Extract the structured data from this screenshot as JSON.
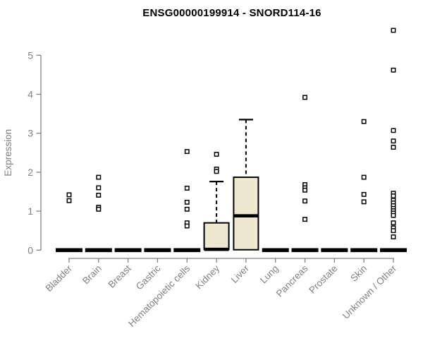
{
  "window": {
    "title": "ENSG00000199914 - SNORD114-16"
  },
  "chart_data": {
    "type": "boxplot",
    "title": "ENSG00000199914 - SNORD114-16",
    "xlabel": "",
    "ylabel": "Expression",
    "ylim": [
      0,
      5.8
    ],
    "yticks": [
      0,
      1,
      2,
      3,
      4,
      5
    ],
    "grid": false,
    "legend": false,
    "categories": [
      "Bladder",
      "Brain",
      "Breast",
      "Gastric",
      "Hematopoietic cells",
      "Kidney",
      "Liver",
      "Lung",
      "Pancreas",
      "Prostate",
      "Skin",
      "Unknown / Other"
    ],
    "boxes": [
      {
        "category": "Bladder",
        "whisker_low": 0,
        "q1": 0,
        "median": 0,
        "q3": 0,
        "whisker_high": 0,
        "outliers": [
          1.42,
          1.27
        ]
      },
      {
        "category": "Brain",
        "whisker_low": 0,
        "q1": 0,
        "median": 0,
        "q3": 0,
        "whisker_high": 0,
        "outliers": [
          1.87,
          1.6,
          1.41,
          1.1,
          1.05
        ]
      },
      {
        "category": "Breast",
        "whisker_low": 0,
        "q1": 0,
        "median": 0,
        "q3": 0,
        "whisker_high": 0,
        "outliers": []
      },
      {
        "category": "Gastric",
        "whisker_low": 0,
        "q1": 0,
        "median": 0,
        "q3": 0,
        "whisker_high": 0,
        "outliers": []
      },
      {
        "category": "Hematopoietic cells",
        "whisker_low": 0,
        "q1": 0,
        "median": 0,
        "q3": 0,
        "whisker_high": 0,
        "outliers": [
          2.53,
          1.59,
          1.23,
          1.05,
          0.7,
          0.62
        ]
      },
      {
        "category": "Kidney",
        "whisker_low": 0,
        "q1": 0.02,
        "median": 0.02,
        "q3": 0.7,
        "whisker_high": 1.76,
        "outliers": [
          2.46,
          2.08,
          2.02
        ]
      },
      {
        "category": "Liver",
        "whisker_low": 0,
        "q1": 0.01,
        "median": 0.88,
        "q3": 1.87,
        "whisker_high": 3.35,
        "outliers": []
      },
      {
        "category": "Lung",
        "whisker_low": 0,
        "q1": 0,
        "median": 0,
        "q3": 0,
        "whisker_high": 0,
        "outliers": []
      },
      {
        "category": "Pancreas",
        "whisker_low": 0,
        "q1": 0,
        "median": 0,
        "q3": 0,
        "whisker_high": 0,
        "outliers": [
          3.92,
          1.68,
          1.6,
          1.54,
          1.26,
          0.79
        ]
      },
      {
        "category": "Prostate",
        "whisker_low": 0,
        "q1": 0,
        "median": 0,
        "q3": 0,
        "whisker_high": 0,
        "outliers": []
      },
      {
        "category": "Skin",
        "whisker_low": 0,
        "q1": 0,
        "median": 0,
        "q3": 0,
        "whisker_high": 0,
        "outliers": [
          3.3,
          1.87,
          1.43,
          1.24
        ]
      },
      {
        "category": "Unknown / Other",
        "whisker_low": 0,
        "q1": 0,
        "median": 0,
        "q3": 0,
        "whisker_high": 0,
        "outliers": [
          5.64,
          4.62,
          3.07,
          2.8,
          2.64,
          1.46,
          1.39,
          1.28,
          1.21,
          1.14,
          1.07,
          1.01,
          0.95,
          0.89,
          0.7,
          0.57,
          0.5,
          0.34
        ]
      }
    ],
    "colors": {
      "box_fill": "#EFE8D0",
      "box_border": "#000000",
      "median": "#000000",
      "whisker": "#000000",
      "outlier": "#000000",
      "axis": "#828282",
      "tick_label": "#828282",
      "title": "#000000",
      "background": "#ffffff"
    }
  }
}
